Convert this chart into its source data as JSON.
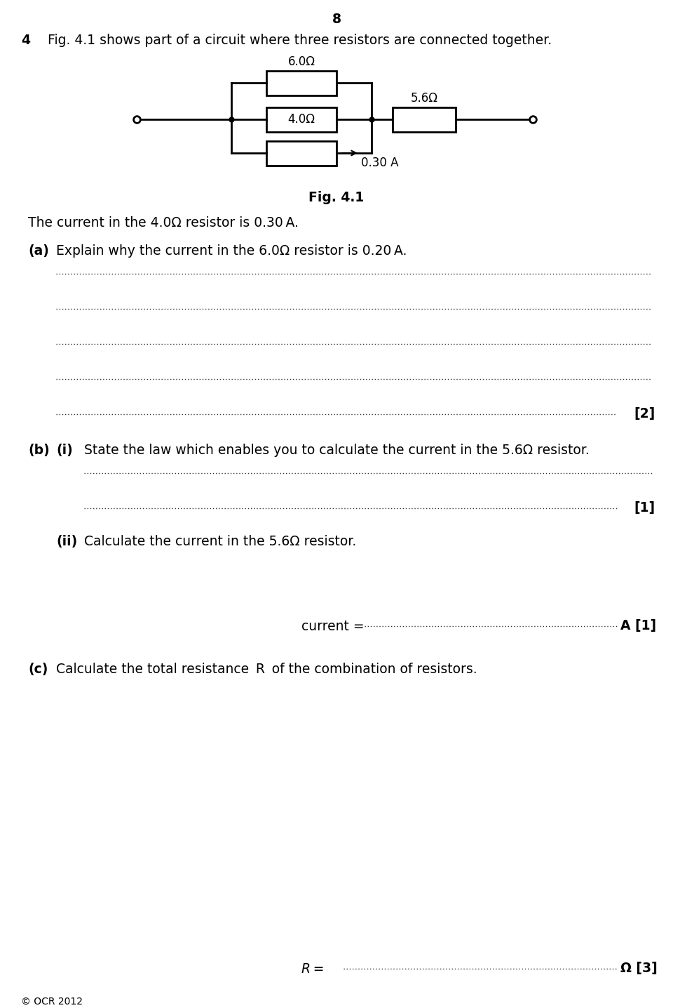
{
  "page_number": "8",
  "question_number": "4",
  "intro_text": "Fig. 4.1 shows part of a circuit where three resistors are connected together.",
  "fig_label": "Fig. 4.1",
  "circuit": {
    "r1_label": "6.0Ω",
    "r2_label": "4.0Ω",
    "r3_label": "5.6Ω",
    "current_label": "0.30 A"
  },
  "current_statement": "The current in the 4.0Ω resistor is 0.30 A.",
  "part_a_label": "(a)",
  "part_a_text": "Explain why the current in the 6.0Ω resistor is 0.20 A.",
  "part_a_marks": "[2]",
  "part_b_label": "(b)",
  "part_bi_label": "(i)",
  "part_bi_text": "State the law which enables you to calculate the current in the 5.6Ω resistor.",
  "part_bi_marks": "[1]",
  "part_bii_label": "(ii)",
  "part_bii_text": "Calculate the current in the 5.6Ω resistor.",
  "part_c_label": "(c)",
  "part_c_text": "Calculate the total resistance  R  of the combination of resistors.",
  "footer": "© OCR 2012",
  "bg_color": "#ffffff",
  "text_color": "#000000"
}
